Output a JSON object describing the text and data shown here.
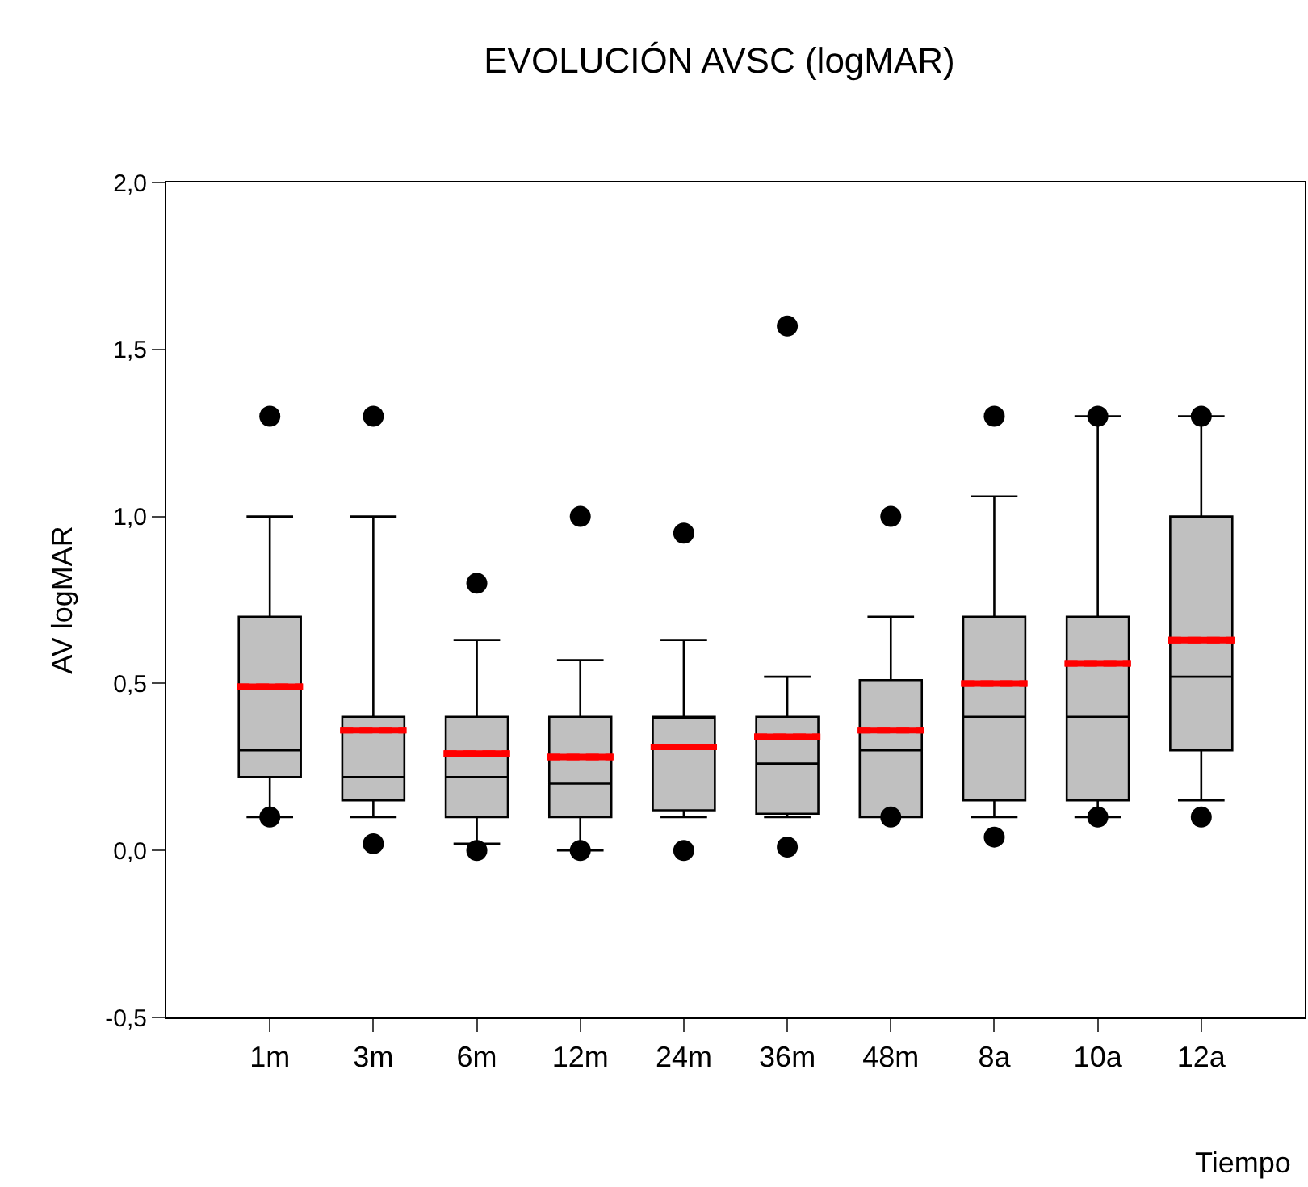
{
  "chart_data": {
    "type": "box",
    "title": "EVOLUCIÓN AVSC (logMAR)",
    "xlabel": "Tiempo",
    "ylabel": "AV logMAR",
    "categories": [
      "1m",
      "3m",
      "6m",
      "12m",
      "24m",
      "36m",
      "48m",
      "8a",
      "10a",
      "12a"
    ],
    "ylim": [
      -0.5,
      2.0
    ],
    "yticks": [
      {
        "value": -0.5,
        "label": "-0,5"
      },
      {
        "value": 0,
        "label": "0,0"
      },
      {
        "value": 0.5,
        "label": "0,5"
      },
      {
        "value": 1.0,
        "label": "1,0"
      },
      {
        "value": 1.5,
        "label": "1,5"
      },
      {
        "value": 2.0,
        "label": "2,0"
      }
    ],
    "marker": "circle",
    "series": [
      {
        "color": "#c0c0c0",
        "boxes": [
          {
            "low": 0.1,
            "q1": 0.22,
            "median": 0.3,
            "q3": 0.7,
            "high": 1.0,
            "mean": 0.49,
            "outliers": [
              1.3,
              0.1
            ]
          },
          {
            "low": 0.1,
            "q1": 0.15,
            "median": 0.22,
            "q3": 0.4,
            "high": 1.0,
            "mean": 0.36,
            "outliers": [
              1.3,
              0.02
            ]
          },
          {
            "low": 0.02,
            "q1": 0.1,
            "median": 0.22,
            "q3": 0.4,
            "high": 0.63,
            "mean": 0.29,
            "outliers": [
              0.8,
              0.0
            ]
          },
          {
            "low": 0.0,
            "q1": 0.1,
            "median": 0.2,
            "q3": 0.4,
            "high": 0.57,
            "mean": 0.28,
            "outliers": [
              1.0,
              0.0
            ]
          },
          {
            "low": 0.1,
            "q1": 0.12,
            "median": 0.4,
            "q3": 0.4,
            "high": 0.63,
            "mean": 0.31,
            "outliers": [
              0.95,
              0.0
            ]
          },
          {
            "low": 0.1,
            "q1": 0.11,
            "median": 0.26,
            "q3": 0.4,
            "high": 0.52,
            "mean": 0.34,
            "outliers": [
              1.57,
              0.01
            ]
          },
          {
            "low": 0.1,
            "q1": 0.1,
            "median": 0.3,
            "q3": 0.51,
            "high": 0.7,
            "mean": 0.36,
            "outliers": [
              1.0,
              0.1
            ]
          },
          {
            "low": 0.1,
            "q1": 0.15,
            "median": 0.4,
            "q3": 0.7,
            "high": 1.06,
            "mean": 0.5,
            "outliers": [
              1.3,
              0.04
            ]
          },
          {
            "low": 0.1,
            "q1": 0.15,
            "median": 0.4,
            "q3": 0.7,
            "high": 1.3,
            "mean": 0.56,
            "outliers": [
              1.3,
              0.1
            ]
          },
          {
            "low": 0.15,
            "q1": 0.3,
            "median": 0.52,
            "q3": 1.0,
            "high": 1.3,
            "mean": 0.63,
            "outliers": [
              1.3,
              0.1
            ]
          }
        ]
      }
    ]
  }
}
